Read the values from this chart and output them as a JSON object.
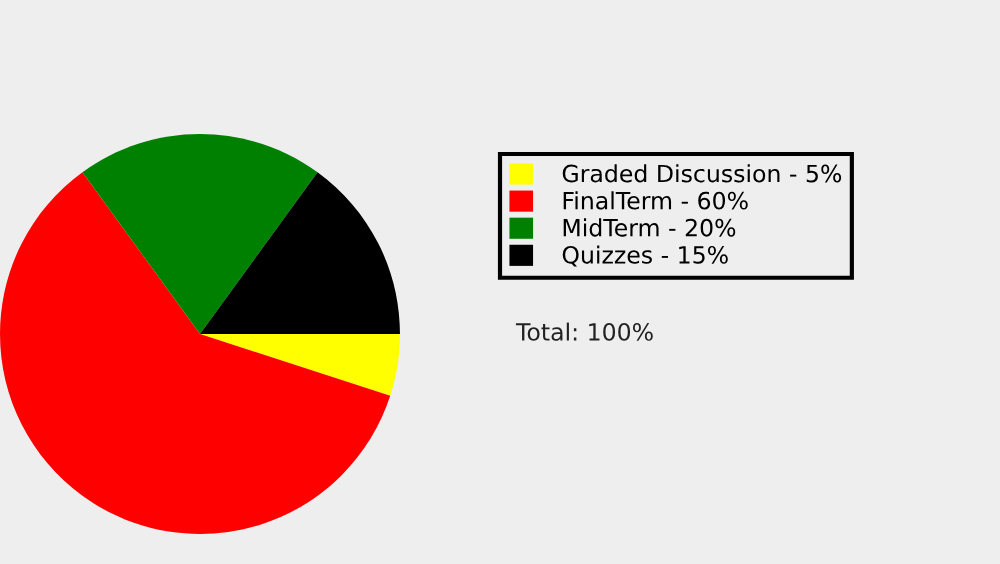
{
  "chart_data": {
    "type": "pie",
    "categories": [
      "Graded Discussion - 5%",
      "FinalTerm - 60%",
      "MidTerm - 20%",
      "Quizzes - 15%"
    ],
    "values": [
      5,
      60,
      20,
      15
    ],
    "colors": [
      "#ffff00",
      "#ff0000",
      "#008000",
      "#000000"
    ],
    "legend": "right",
    "annotations": [
      "Total: 100%"
    ]
  }
}
